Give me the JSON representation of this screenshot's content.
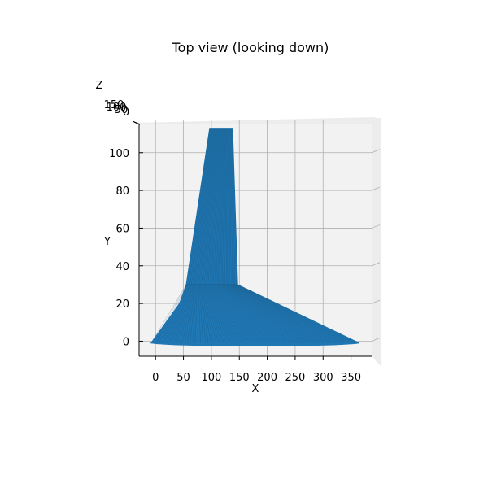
{
  "chart_data": {
    "type": "surface-3d",
    "title": "Top view (looking down)",
    "view": "top",
    "xlabel": "X",
    "ylabel": "Y",
    "zlabel": "Z",
    "xlim": [
      -28,
      387
    ],
    "ylim": [
      -8,
      115
    ],
    "x_ticks": [
      0,
      50,
      100,
      150,
      200,
      250,
      300,
      350
    ],
    "y_ticks": [
      0,
      20,
      40,
      60,
      80,
      100
    ],
    "z_ticks": [
      "150",
      "100",
      "50",
      "0"
    ],
    "grid": true,
    "surface_color": "#1f77b4",
    "surface_edge_color": "#1a4f73",
    "pane_color": "#f2f2f2",
    "surface": {
      "upper_tube": [
        [
          97,
          113
        ],
        [
          138,
          113
        ],
        [
          147,
          30
        ],
        [
          55,
          30
        ]
      ],
      "lower_cone": [
        [
          55,
          30
        ],
        [
          147,
          30
        ],
        [
          365,
          -1
        ],
        [
          -8,
          -1
        ],
        [
          43,
          20
        ]
      ]
    }
  }
}
